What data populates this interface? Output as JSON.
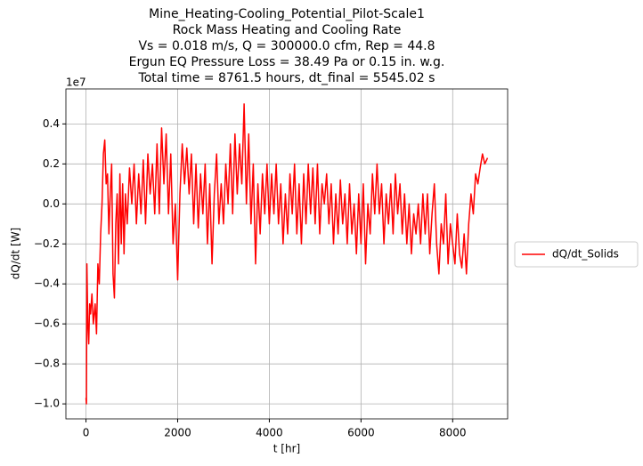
{
  "chart_data": {
    "type": "line",
    "title": [
      "Mine_Heating-Cooling_Potential_Pilot-Scale1",
      "Rock Mass Heating and Cooling Rate",
      "Vs = 0.018 m/s, Q = 300000.0 cfm, Rep = 44.8",
      "Ergun EQ Pressure Loss = 38.49 Pa or 0.15 in. w.g.",
      "Total time = 8761.5 hours, dt_final = 5545.02 s"
    ],
    "xlabel": "t [hr]",
    "ylabel": "dQ/dt [W]",
    "y_offset_label": "1e7",
    "x": [
      0,
      10,
      20,
      40,
      60,
      80,
      100,
      130,
      160,
      200,
      230,
      260,
      290,
      320,
      350,
      380,
      410,
      440,
      470,
      500,
      530,
      560,
      590,
      620,
      650,
      680,
      710,
      740,
      770,
      800,
      830,
      860,
      900,
      950,
      1000,
      1050,
      1100,
      1150,
      1200,
      1250,
      1300,
      1350,
      1400,
      1450,
      1500,
      1550,
      1600,
      1650,
      1700,
      1750,
      1800,
      1850,
      1900,
      1950,
      2000,
      2050,
      2100,
      2150,
      2200,
      2250,
      2300,
      2350,
      2400,
      2450,
      2500,
      2550,
      2600,
      2650,
      2700,
      2750,
      2800,
      2850,
      2900,
      2950,
      3000,
      3050,
      3100,
      3150,
      3200,
      3250,
      3300,
      3350,
      3400,
      3450,
      3500,
      3550,
      3600,
      3650,
      3700,
      3750,
      3800,
      3850,
      3900,
      3950,
      4000,
      4050,
      4100,
      4150,
      4200,
      4250,
      4300,
      4350,
      4400,
      4450,
      4500,
      4550,
      4600,
      4650,
      4700,
      4750,
      4800,
      4850,
      4900,
      4950,
      5000,
      5050,
      5100,
      5150,
      5200,
      5250,
      5300,
      5350,
      5400,
      5450,
      5500,
      5550,
      5600,
      5650,
      5700,
      5750,
      5800,
      5850,
      5900,
      5950,
      6000,
      6050,
      6100,
      6150,
      6200,
      6250,
      6300,
      6350,
      6400,
      6450,
      6500,
      6550,
      6600,
      6650,
      6700,
      6750,
      6800,
      6850,
      6900,
      6950,
      7000,
      7050,
      7100,
      7150,
      7200,
      7250,
      7300,
      7350,
      7400,
      7450,
      7500,
      7550,
      7600,
      7650,
      7700,
      7750,
      7800,
      7850,
      7900,
      7950,
      8000,
      8050,
      8100,
      8150,
      8200,
      8250,
      8300,
      8350,
      8400,
      8450,
      8500,
      8550,
      8600,
      8650,
      8700,
      8761.5
    ],
    "series": [
      {
        "name": "dQ/dt_Solids",
        "color": "#ff0000",
        "values": [
          -0.97,
          -1.0,
          -0.3,
          -0.6,
          -0.7,
          -0.5,
          -0.55,
          -0.45,
          -0.6,
          -0.5,
          -0.65,
          -0.3,
          -0.4,
          -0.15,
          0.0,
          0.25,
          0.32,
          0.1,
          0.15,
          -0.15,
          0.05,
          0.2,
          -0.35,
          -0.47,
          -0.1,
          0.05,
          -0.3,
          0.15,
          -0.2,
          0.1,
          -0.25,
          0.05,
          -0.1,
          0.18,
          0.0,
          0.2,
          -0.1,
          0.15,
          -0.05,
          0.22,
          -0.1,
          0.25,
          0.05,
          0.2,
          -0.05,
          0.3,
          -0.05,
          0.38,
          0.1,
          0.35,
          -0.05,
          0.25,
          -0.2,
          0.0,
          -0.38,
          0.05,
          0.3,
          0.1,
          0.28,
          0.05,
          0.25,
          -0.1,
          0.2,
          -0.12,
          0.15,
          -0.05,
          0.2,
          -0.2,
          0.1,
          -0.3,
          0.05,
          0.25,
          -0.1,
          0.1,
          -0.1,
          0.2,
          0.0,
          0.3,
          -0.05,
          0.35,
          0.05,
          0.3,
          0.1,
          0.5,
          0.0,
          0.35,
          -0.1,
          0.2,
          -0.3,
          0.1,
          -0.15,
          0.15,
          -0.05,
          0.2,
          -0.1,
          0.15,
          -0.05,
          0.2,
          -0.1,
          0.1,
          -0.2,
          0.05,
          -0.15,
          0.15,
          -0.05,
          0.2,
          -0.15,
          0.1,
          -0.2,
          0.15,
          -0.1,
          0.2,
          -0.05,
          0.18,
          -0.1,
          0.2,
          -0.15,
          0.1,
          0.0,
          0.15,
          -0.1,
          0.1,
          -0.2,
          0.05,
          -0.15,
          0.12,
          -0.1,
          0.05,
          -0.2,
          0.1,
          -0.15,
          0.0,
          -0.25,
          0.05,
          -0.2,
          0.1,
          -0.3,
          0.0,
          -0.15,
          0.15,
          -0.05,
          0.2,
          -0.05,
          0.1,
          -0.2,
          0.05,
          -0.1,
          0.1,
          -0.15,
          0.15,
          -0.05,
          0.1,
          -0.15,
          0.05,
          -0.2,
          0.0,
          -0.25,
          -0.05,
          -0.15,
          0.0,
          -0.2,
          0.05,
          -0.15,
          0.05,
          -0.25,
          -0.05,
          0.1,
          -0.2,
          -0.35,
          -0.1,
          -0.2,
          0.05,
          -0.3,
          -0.1,
          -0.2,
          -0.3,
          -0.05,
          -0.25,
          -0.32,
          -0.15,
          -0.35,
          -0.1,
          0.05,
          -0.05,
          0.15,
          0.1,
          0.18,
          0.25,
          0.2,
          0.23
        ]
      }
    ],
    "xlim": [
      -438,
      9199
    ],
    "xticks": [
      0,
      2000,
      4000,
      6000,
      8000
    ],
    "ylim": [
      -1.075,
      0.575
    ],
    "yticks": [
      {
        "value": -1.0,
        "label": "−1.0"
      },
      {
        "value": -0.8,
        "label": "−0.8"
      },
      {
        "value": -0.6,
        "label": "−0.6"
      },
      {
        "value": -0.4,
        "label": "−0.4"
      },
      {
        "value": -0.2,
        "label": "−0.2"
      },
      {
        "value": 0.0,
        "label": "0.0"
      },
      {
        "value": 0.2,
        "label": "0.2"
      },
      {
        "value": 0.4,
        "label": "0.4"
      }
    ],
    "grid": true,
    "legend": "center right outside"
  }
}
